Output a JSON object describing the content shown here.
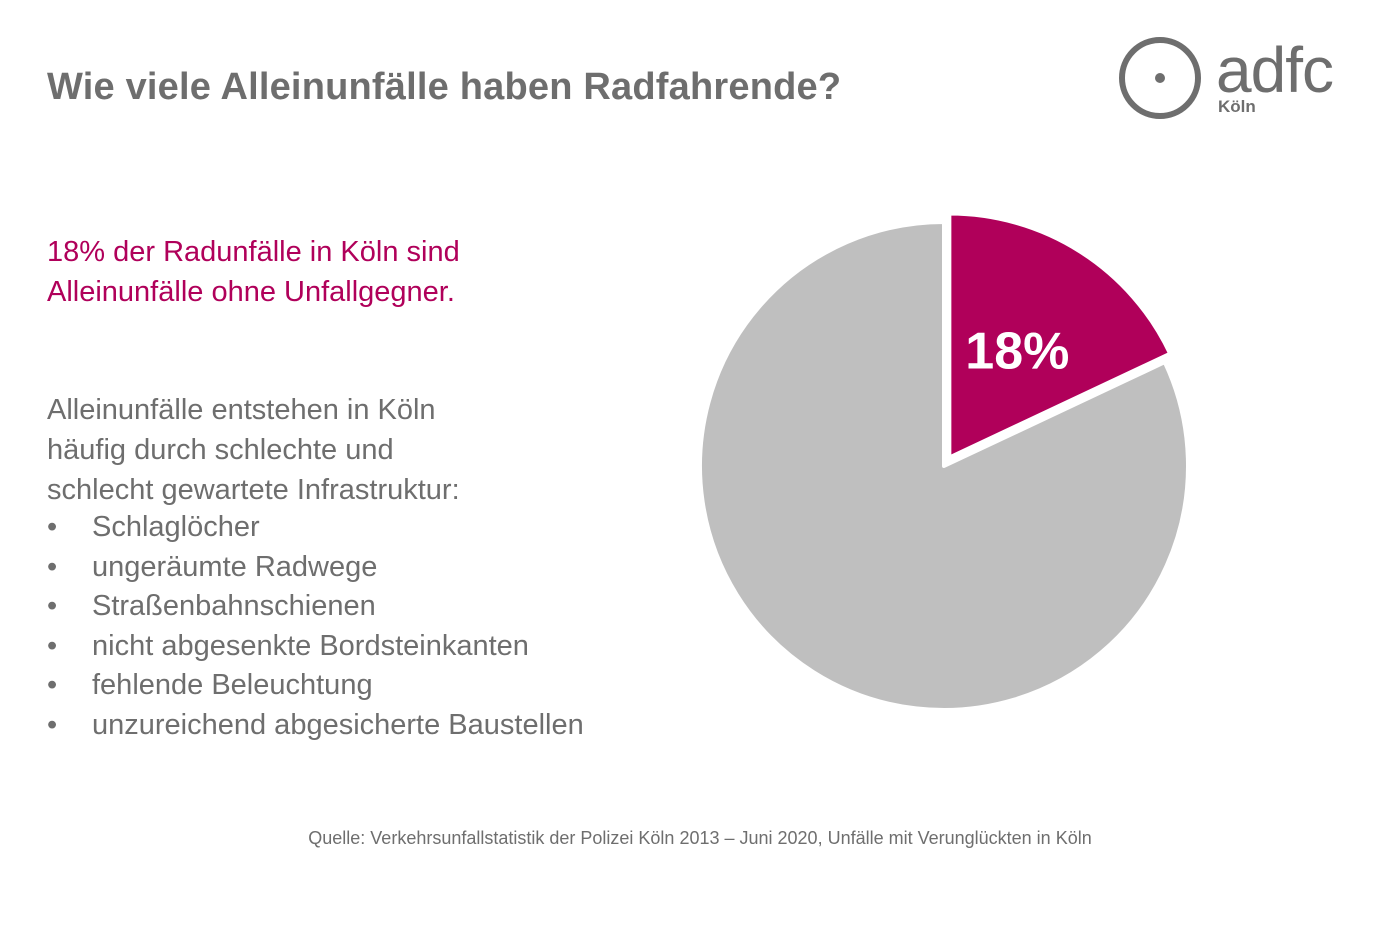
{
  "title": "Wie viele Alleinunfälle haben Radfahrende?",
  "logo": {
    "wordmark": "adfc",
    "city": "Köln",
    "color": "#6e6e6e",
    "icon": "adfc-circle-logo"
  },
  "highlight": {
    "line1": "18% der Radunfälle in Köln sind",
    "line2": "Alleinunfälle ohne Unfallgegner."
  },
  "body": {
    "line1": "Alleinunfälle entstehen in Köln",
    "line2": "häufig durch schlechte und",
    "line3": "schlecht gewartete Infrastruktur:",
    "bullet_glyph": "•",
    "bullets": [
      "Schlaglöcher",
      "ungeräumte Radwege",
      "Straßenbahnschienen",
      "nicht abgesenkte Bordsteinkanten",
      "fehlende Beleuchtung",
      "unzureichend abgesicherte Baustellen"
    ]
  },
  "chart_data": {
    "type": "pie",
    "slices": [
      {
        "label": "18%",
        "value": 18,
        "color": "#b0005a",
        "exploded": true
      },
      {
        "label": "",
        "value": 82,
        "color": "#bfbfbf",
        "exploded": false
      }
    ],
    "start_angle_deg": 0,
    "direction": "clockwise",
    "legend": "none"
  },
  "source": "Quelle: Verkehrsunfallstatistik der Polizei Köln 2013 – Juni 2020, Unfälle mit Verunglückten in Köln"
}
